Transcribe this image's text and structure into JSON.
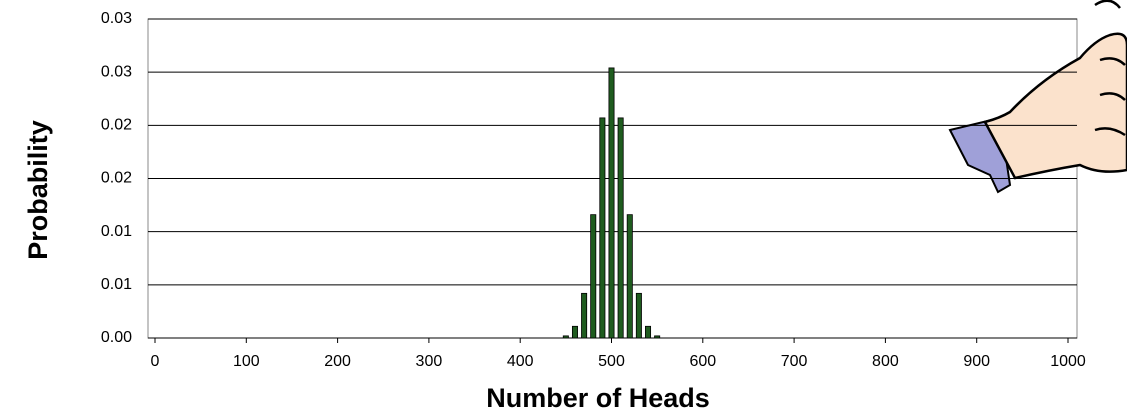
{
  "chart_data": {
    "type": "bar",
    "x_label": "Number of Heads",
    "y_label": "Probability",
    "x": [
      420,
      430,
      440,
      450,
      460,
      470,
      480,
      490,
      500,
      510,
      520,
      530,
      540,
      550,
      560,
      570,
      580
    ],
    "values": [
      0,
      0,
      0,
      0.0002,
      0.0011,
      0.0042,
      0.0116,
      0.0207,
      0.0254,
      0.0207,
      0.0116,
      0.0042,
      0.0011,
      0.0002,
      0,
      0,
      0
    ],
    "color": "#1f5c1f",
    "xlim": [
      0,
      1000
    ],
    "xticks": [
      0,
      100,
      200,
      300,
      400,
      500,
      600,
      700,
      800,
      900,
      1000
    ],
    "ylim": [
      0,
      0.03
    ],
    "yticks": [
      {
        "value": 0,
        "label": "0.00"
      },
      {
        "value": 0.005,
        "label": "0.01"
      },
      {
        "value": 0.01,
        "label": "0.01"
      },
      {
        "value": 0.015,
        "label": "0.02"
      },
      {
        "value": 0.02,
        "label": "0.02"
      },
      {
        "value": 0.025,
        "label": "0.03"
      },
      {
        "value": 0.03,
        "label": "0.03"
      }
    ],
    "grid": true
  }
}
